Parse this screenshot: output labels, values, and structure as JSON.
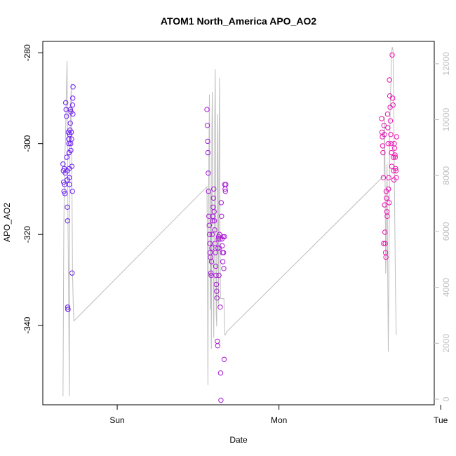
{
  "chart_data": {
    "type": "scatter",
    "title": "ATOM1 North_America APO_AO2",
    "xlabel": "Date",
    "ylabel": "APO_AO2",
    "x_ticks": [
      "Sun",
      "Mon",
      "Tue"
    ],
    "x_tick_positions_days": [
      0,
      1,
      2
    ],
    "xlim_days": [
      -0.46,
      1.96
    ],
    "y_ticks": [
      -280,
      -300,
      -320,
      -340
    ],
    "ylim": [
      -357.5,
      -277.5
    ],
    "y2_ticks": [
      0,
      2000,
      4000,
      6000,
      8000,
      10000,
      12000
    ],
    "y2lim": [
      -200,
      12800
    ],
    "colors": {
      "frame": "#000000",
      "right_axis": "#bebebe",
      "line": "#bebebe",
      "points_start": "#6a1cf5",
      "points_end": "#f012b0"
    },
    "series": [
      {
        "role": "points",
        "gradient": "time",
        "points": [
          [
            -0.335,
            -304.5
          ],
          [
            -0.333,
            -306
          ],
          [
            -0.331,
            -308.5
          ],
          [
            -0.329,
            -310.5
          ],
          [
            -0.327,
            -305.5
          ],
          [
            -0.325,
            -309
          ],
          [
            -0.323,
            -311
          ],
          [
            -0.321,
            -306.5
          ],
          [
            -0.318,
            -291
          ],
          [
            -0.316,
            -292.5
          ],
          [
            -0.314,
            -294
          ],
          [
            -0.312,
            -303
          ],
          [
            -0.31,
            -306
          ],
          [
            -0.309,
            -308
          ],
          [
            -0.308,
            -314
          ],
          [
            -0.307,
            -317
          ],
          [
            -0.306,
            -336
          ],
          [
            -0.305,
            -336.5
          ],
          [
            -0.304,
            -336.5
          ],
          [
            -0.302,
            -297.5
          ],
          [
            -0.3,
            -299
          ],
          [
            -0.299,
            -300
          ],
          [
            -0.298,
            -302
          ],
          [
            -0.297,
            -305.5
          ],
          [
            -0.296,
            -307.5
          ],
          [
            -0.295,
            -309
          ],
          [
            -0.294,
            -298
          ],
          [
            -0.292,
            -297
          ],
          [
            -0.29,
            -295.5
          ],
          [
            -0.289,
            -292.5
          ],
          [
            -0.288,
            -300
          ],
          [
            -0.287,
            -301.5
          ],
          [
            -0.286,
            -293
          ],
          [
            -0.284,
            -297.5
          ],
          [
            -0.282,
            -299
          ],
          [
            -0.28,
            -305
          ],
          [
            -0.279,
            -328.5
          ],
          [
            -0.277,
            -310.5
          ],
          [
            -0.276,
            -291.5
          ],
          [
            -0.275,
            -290
          ],
          [
            -0.274,
            -293.5
          ],
          [
            -0.273,
            -287.5
          ],
          [
            0.555,
            -292.5
          ],
          [
            0.557,
            -296
          ],
          [
            0.559,
            -299.5
          ],
          [
            0.561,
            -302
          ],
          [
            0.563,
            -306.5
          ],
          [
            0.565,
            -310.5
          ],
          [
            0.567,
            -316
          ],
          [
            0.569,
            -318
          ],
          [
            0.571,
            -320
          ],
          [
            0.573,
            -322
          ],
          [
            0.575,
            -324
          ],
          [
            0.577,
            -325
          ],
          [
            0.579,
            -328.5
          ],
          [
            0.581,
            -329
          ],
          [
            0.583,
            -326
          ],
          [
            0.585,
            -323
          ],
          [
            0.587,
            -320
          ],
          [
            0.589,
            -317
          ],
          [
            0.591,
            -316
          ],
          [
            0.593,
            -314
          ],
          [
            0.595,
            -312
          ],
          [
            0.597,
            -310
          ],
          [
            0.599,
            -315
          ],
          [
            0.601,
            -317
          ],
          [
            0.603,
            -319
          ],
          [
            0.605,
            -322
          ],
          [
            0.607,
            -324
          ],
          [
            0.609,
            -327
          ],
          [
            0.611,
            -329
          ],
          [
            0.613,
            -331
          ],
          [
            0.615,
            -332.5
          ],
          [
            0.617,
            -334
          ],
          [
            0.619,
            -343.5
          ],
          [
            0.621,
            -344.5
          ],
          [
            0.623,
            -323
          ],
          [
            0.625,
            -321
          ],
          [
            0.627,
            -320.5
          ],
          [
            0.629,
            -329
          ],
          [
            0.631,
            -323
          ],
          [
            0.633,
            -320
          ],
          [
            0.635,
            -321
          ],
          [
            0.637,
            -336
          ],
          [
            0.639,
            -350.5
          ],
          [
            0.641,
            -356.5
          ],
          [
            0.643,
            -313
          ],
          [
            0.645,
            -316
          ],
          [
            0.647,
            -321
          ],
          [
            0.649,
            -322.5
          ],
          [
            0.651,
            -324
          ],
          [
            0.653,
            -326
          ],
          [
            0.655,
            -320.5
          ],
          [
            0.657,
            -324
          ],
          [
            0.659,
            -327.5
          ],
          [
            0.661,
            -347.5
          ],
          [
            0.663,
            -320.5
          ],
          [
            0.665,
            -309
          ],
          [
            0.667,
            -310
          ],
          [
            0.669,
            -310.5
          ],
          [
            0.671,
            -309
          ],
          [
            1.635,
            -294.5
          ],
          [
            1.637,
            -297.5
          ],
          [
            1.639,
            -298.5
          ],
          [
            1.641,
            -300.5
          ],
          [
            1.643,
            -302
          ],
          [
            1.645,
            -307.5
          ],
          [
            1.647,
            -322
          ],
          [
            1.649,
            -296
          ],
          [
            1.651,
            -298
          ],
          [
            1.653,
            -313.5
          ],
          [
            1.655,
            -319.5
          ],
          [
            1.657,
            -322
          ],
          [
            1.659,
            -324
          ],
          [
            1.661,
            -325
          ],
          [
            1.663,
            -310.5
          ],
          [
            1.665,
            -312
          ],
          [
            1.667,
            -315
          ],
          [
            1.669,
            -316
          ],
          [
            1.671,
            -293.5
          ],
          [
            1.673,
            -296.5
          ],
          [
            1.675,
            -300
          ],
          [
            1.677,
            -310
          ],
          [
            1.679,
            -307.5
          ],
          [
            1.681,
            -313
          ],
          [
            1.683,
            -286
          ],
          [
            1.685,
            -289.5
          ],
          [
            1.687,
            -292
          ],
          [
            1.689,
            -295
          ],
          [
            1.691,
            -298
          ],
          [
            1.693,
            -300
          ],
          [
            1.695,
            -302
          ],
          [
            1.697,
            -305
          ],
          [
            1.7,
            -280.5
          ],
          [
            1.703,
            -290
          ],
          [
            1.705,
            -291.5
          ],
          [
            1.707,
            -303
          ],
          [
            1.709,
            -306
          ],
          [
            1.711,
            -308
          ],
          [
            1.713,
            -300
          ],
          [
            1.715,
            -301
          ],
          [
            1.717,
            -302.5
          ],
          [
            1.719,
            -303
          ],
          [
            1.721,
            -305.5
          ],
          [
            1.723,
            -306
          ],
          [
            1.725,
            -307.5
          ],
          [
            1.727,
            -298.5
          ]
        ]
      },
      {
        "role": "line",
        "axis": "right",
        "points": [
          [
            -0.335,
            100
          ],
          [
            -0.33,
            6200
          ],
          [
            -0.325,
            8600
          ],
          [
            -0.32,
            9200
          ],
          [
            -0.315,
            10800
          ],
          [
            -0.31,
            12100
          ],
          [
            -0.305,
            7000
          ],
          [
            -0.3,
            3600
          ],
          [
            -0.296,
            100
          ],
          [
            -0.292,
            9200
          ],
          [
            -0.288,
            10400
          ],
          [
            -0.284,
            11300
          ],
          [
            -0.28,
            7800
          ],
          [
            -0.276,
            4500
          ],
          [
            -0.272,
            3500
          ],
          [
            -0.268,
            2800
          ],
          [
            0.555,
            7600
          ],
          [
            0.558,
            4800
          ],
          [
            0.561,
            500
          ],
          [
            0.564,
            6200
          ],
          [
            0.567,
            8800
          ],
          [
            0.57,
            10900
          ],
          [
            0.573,
            6000
          ],
          [
            0.576,
            3200
          ],
          [
            0.579,
            7400
          ],
          [
            0.582,
            1800
          ],
          [
            0.585,
            9600
          ],
          [
            0.588,
            11000
          ],
          [
            0.591,
            8200
          ],
          [
            0.594,
            4000
          ],
          [
            0.597,
            2200
          ],
          [
            0.6,
            5800
          ],
          [
            0.603,
            9900
          ],
          [
            0.606,
            11800
          ],
          [
            0.609,
            7000
          ],
          [
            0.612,
            3000
          ],
          [
            0.615,
            2600
          ],
          [
            0.618,
            8000
          ],
          [
            0.621,
            10200
          ],
          [
            0.624,
            6400
          ],
          [
            0.627,
            3400
          ],
          [
            0.63,
            9400
          ],
          [
            0.633,
            11500
          ],
          [
            0.636,
            5200
          ],
          [
            0.639,
            3600
          ],
          [
            0.642,
            3600
          ],
          [
            0.645,
            3600
          ],
          [
            0.648,
            3600
          ],
          [
            0.651,
            3600
          ],
          [
            0.654,
            3600
          ],
          [
            0.657,
            3600
          ],
          [
            0.66,
            3600
          ],
          [
            0.665,
            2300
          ],
          [
            0.67,
            2300
          ],
          [
            0.675,
            2400
          ],
          [
            1.65,
            8000
          ],
          [
            1.653,
            10100
          ],
          [
            1.656,
            8000
          ],
          [
            1.66,
            4500
          ],
          [
            1.664,
            5400
          ],
          [
            1.668,
            8400
          ],
          [
            1.672,
            4800
          ],
          [
            1.676,
            1700
          ],
          [
            1.68,
            4600
          ],
          [
            1.684,
            8800
          ],
          [
            1.688,
            10600
          ],
          [
            1.692,
            11300
          ],
          [
            1.696,
            12300
          ],
          [
            1.7,
            12600
          ],
          [
            1.705,
            12500
          ],
          [
            1.71,
            10000
          ],
          [
            1.715,
            7000
          ],
          [
            1.72,
            4000
          ],
          [
            1.725,
            2300
          ]
        ]
      }
    ]
  }
}
